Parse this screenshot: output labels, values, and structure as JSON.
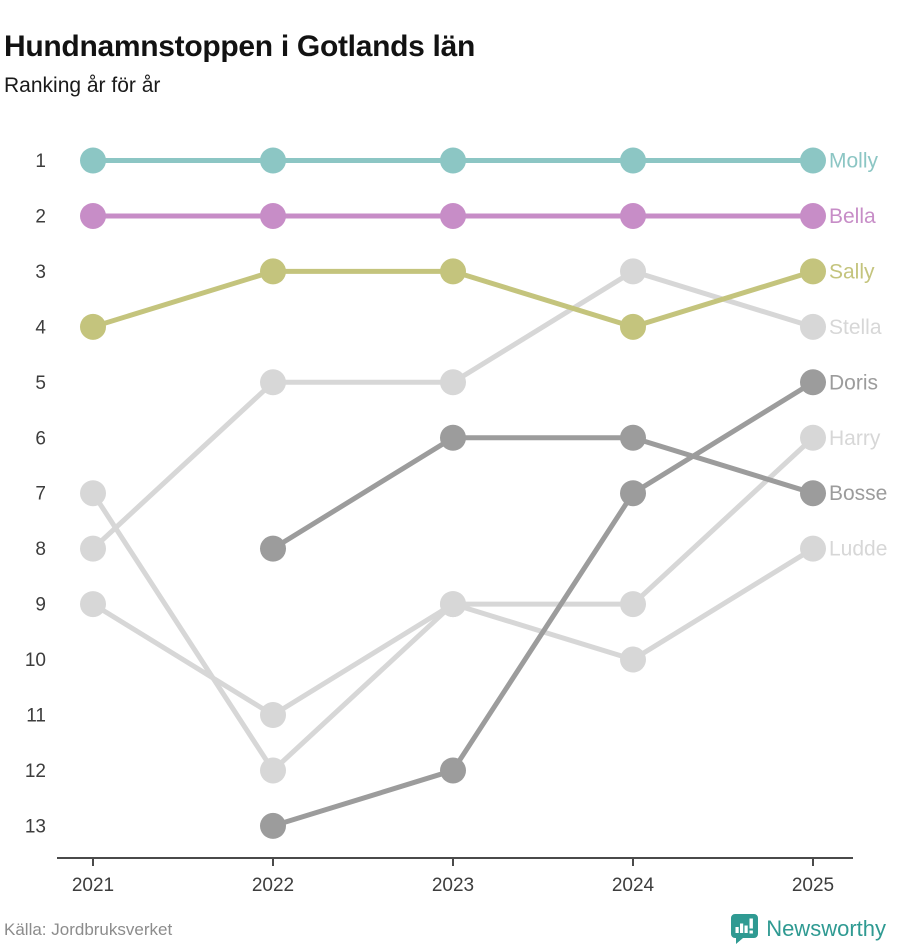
{
  "header": {
    "title": "Hundnamnstoppen i Gotlands län",
    "subtitle": "Ranking år för år"
  },
  "footer": {
    "source": "Källa: Jordbruksverket",
    "branding": "Newsworthy",
    "brand_color": "#2f9a92"
  },
  "chart_data": {
    "type": "line",
    "variant": "bump-ranking",
    "title": "Hundnamnstoppen i Gotlands län",
    "subtitle": "Ranking år för år",
    "x_labels": [
      "2021",
      "2022",
      "2023",
      "2024",
      "2025"
    ],
    "y_ticks": [
      1,
      2,
      3,
      4,
      5,
      6,
      7,
      8,
      9,
      10,
      11,
      12,
      13
    ],
    "y_inverted": true,
    "ylim": [
      1,
      13
    ],
    "grid": false,
    "legend_position": "right-of-last-point",
    "axis_color": "#4a4a4a",
    "tick_label_color": "#3d3d3d",
    "series": [
      {
        "name": "Molly",
        "color": "#8cc6c4",
        "values": [
          1,
          1,
          1,
          1,
          1
        ]
      },
      {
        "name": "Bella",
        "color": "#c78dc7",
        "values": [
          2,
          2,
          2,
          2,
          2
        ]
      },
      {
        "name": "Sally",
        "color": "#c4c47d",
        "values": [
          4,
          3,
          3,
          4,
          3
        ]
      },
      {
        "name": "Stella",
        "color": "#d7d7d7",
        "values": [
          8,
          5,
          5,
          3,
          4
        ]
      },
      {
        "name": "Doris",
        "color": "#9c9c9c",
        "values": [
          null,
          13,
          12,
          7,
          5
        ]
      },
      {
        "name": "Harry",
        "color": "#d7d7d7",
        "values": [
          7,
          12,
          9,
          9,
          6
        ]
      },
      {
        "name": "Bosse",
        "color": "#9c9c9c",
        "values": [
          null,
          8,
          6,
          6,
          7
        ]
      },
      {
        "name": "Ludde",
        "color": "#d7d7d7",
        "values": [
          9,
          11,
          9,
          10,
          8
        ]
      }
    ],
    "source": "Källa: Jordbruksverket"
  }
}
